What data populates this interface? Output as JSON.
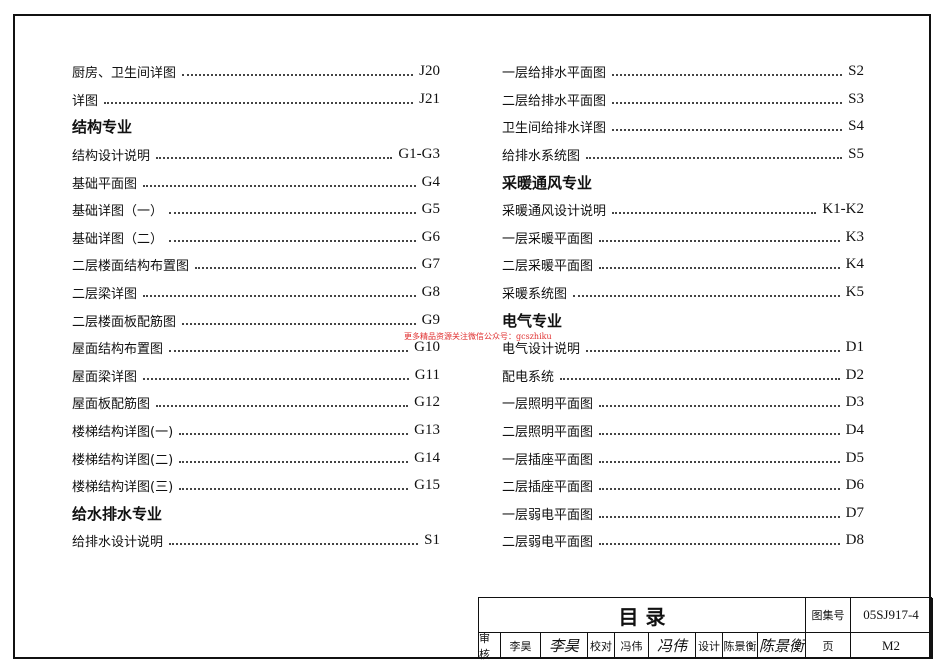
{
  "left_column": [
    {
      "type": "item",
      "text": "厨房、卫生间详图",
      "code": "J20"
    },
    {
      "type": "item",
      "text": "详图",
      "code": "J21"
    },
    {
      "type": "heading",
      "text": "结构专业"
    },
    {
      "type": "item",
      "text": "结构设计说明",
      "code": "G1-G3"
    },
    {
      "type": "item",
      "text": "基础平面图",
      "code": "G4"
    },
    {
      "type": "item",
      "text": "基础详图（一）",
      "code": "G5"
    },
    {
      "type": "item",
      "text": "基础详图（二）",
      "code": "G6"
    },
    {
      "type": "item",
      "text": "二层楼面结构布置图",
      "code": "G7"
    },
    {
      "type": "item",
      "text": "二层梁详图",
      "code": "G8"
    },
    {
      "type": "item",
      "text": "二层楼面板配筋图",
      "code": "G9"
    },
    {
      "type": "item",
      "text": "屋面结构布置图",
      "code": "G10"
    },
    {
      "type": "item",
      "text": "屋面梁详图",
      "code": "G11"
    },
    {
      "type": "item",
      "text": "屋面板配筋图",
      "code": "G12"
    },
    {
      "type": "item",
      "text": "楼梯结构详图(一)",
      "code": "G13"
    },
    {
      "type": "item",
      "text": "楼梯结构详图(二)",
      "code": "G14"
    },
    {
      "type": "item",
      "text": "楼梯结构详图(三)",
      "code": "G15"
    },
    {
      "type": "heading",
      "text": "给水排水专业"
    },
    {
      "type": "item",
      "text": "给排水设计说明",
      "code": "S1"
    }
  ],
  "right_column": [
    {
      "type": "item",
      "text": "一层给排水平面图",
      "code": "S2"
    },
    {
      "type": "item",
      "text": "二层给排水平面图",
      "code": "S3"
    },
    {
      "type": "item",
      "text": "卫生间给排水详图",
      "code": "S4"
    },
    {
      "type": "item",
      "text": "给排水系统图",
      "code": "S5"
    },
    {
      "type": "heading",
      "text": "采暖通风专业"
    },
    {
      "type": "item",
      "text": "采暖通风设计说明",
      "code": "K1-K2"
    },
    {
      "type": "item",
      "text": "一层采暖平面图",
      "code": "K3"
    },
    {
      "type": "item",
      "text": "二层采暖平面图",
      "code": "K4"
    },
    {
      "type": "item",
      "text": "采暖系统图",
      "code": "K5"
    },
    {
      "type": "heading",
      "text": "电气专业"
    },
    {
      "type": "item",
      "text": "电气设计说明",
      "code": "D1"
    },
    {
      "type": "item",
      "text": "配电系统",
      "code": "D2"
    },
    {
      "type": "item",
      "text": "一层照明平面图",
      "code": "D3"
    },
    {
      "type": "item",
      "text": "二层照明平面图",
      "code": "D4"
    },
    {
      "type": "item",
      "text": "一层插座平面图",
      "code": "D5"
    },
    {
      "type": "item",
      "text": "二层插座平面图",
      "code": "D6"
    },
    {
      "type": "item",
      "text": "一层弱电平面图",
      "code": "D7"
    },
    {
      "type": "item",
      "text": "二层弱电平面图",
      "code": "D8"
    }
  ],
  "watermark": "更多精品资源关注微信公众号：gcszhiku",
  "title_block": {
    "title": "目 录",
    "atlas_label": "图集号",
    "atlas_no": "05SJ917-4",
    "review_label": "审核",
    "reviewer": "李昊",
    "reviewer_sig": "李昊",
    "check_label": "校对",
    "checker": "冯伟",
    "checker_sig": "冯伟",
    "design_label": "设计",
    "designer": "陈景衡",
    "designer_sig": "陈景衡",
    "page_label": "页",
    "page": "M2"
  }
}
